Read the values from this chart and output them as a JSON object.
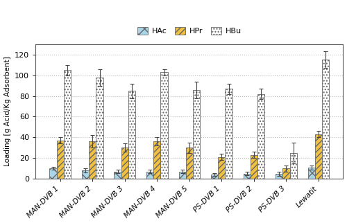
{
  "categories": [
    "MAN-DVB 1",
    "MAN-DVB 2",
    "MAN-DVB 3",
    "MAN-DVB 4",
    "MAN-DVB 5",
    "PS-DVB 1",
    "PS-DVB 2",
    "PS-DVB 3",
    "Lewatit"
  ],
  "HAc": [
    10,
    8,
    7,
    7,
    7,
    4,
    5,
    5,
    11
  ],
  "HPr": [
    37,
    36,
    30,
    36,
    30,
    21,
    23,
    10,
    43
  ],
  "HBu": [
    105,
    98,
    85,
    103,
    86,
    87,
    82,
    25,
    115
  ],
  "HAc_err": [
    1.5,
    2.0,
    1.5,
    1.5,
    1.5,
    1.5,
    1.5,
    2.0,
    2.0
  ],
  "HPr_err": [
    3.0,
    6.0,
    4.0,
    4.0,
    5.0,
    3.0,
    3.0,
    3.0,
    3.0
  ],
  "HBu_err": [
    5.0,
    8.0,
    7.0,
    3.0,
    8.0,
    5.0,
    5.0,
    10.0,
    8.0
  ],
  "ylabel": "Loading [g Acid/Kg Adsorbent]",
  "ylim": [
    0,
    130
  ],
  "yticks": [
    0,
    20,
    40,
    60,
    80,
    100,
    120
  ],
  "legend_labels": [
    "HAc",
    "HPr",
    "HBu"
  ],
  "HAc_color": "#aad4e8",
  "HPr_color": "#f0c040",
  "HBu_color": "#ffffff",
  "edge_color": "#666666",
  "error_color": "#444444",
  "figsize": [
    5.0,
    3.22
  ],
  "dpi": 100,
  "bar_width": 0.22
}
